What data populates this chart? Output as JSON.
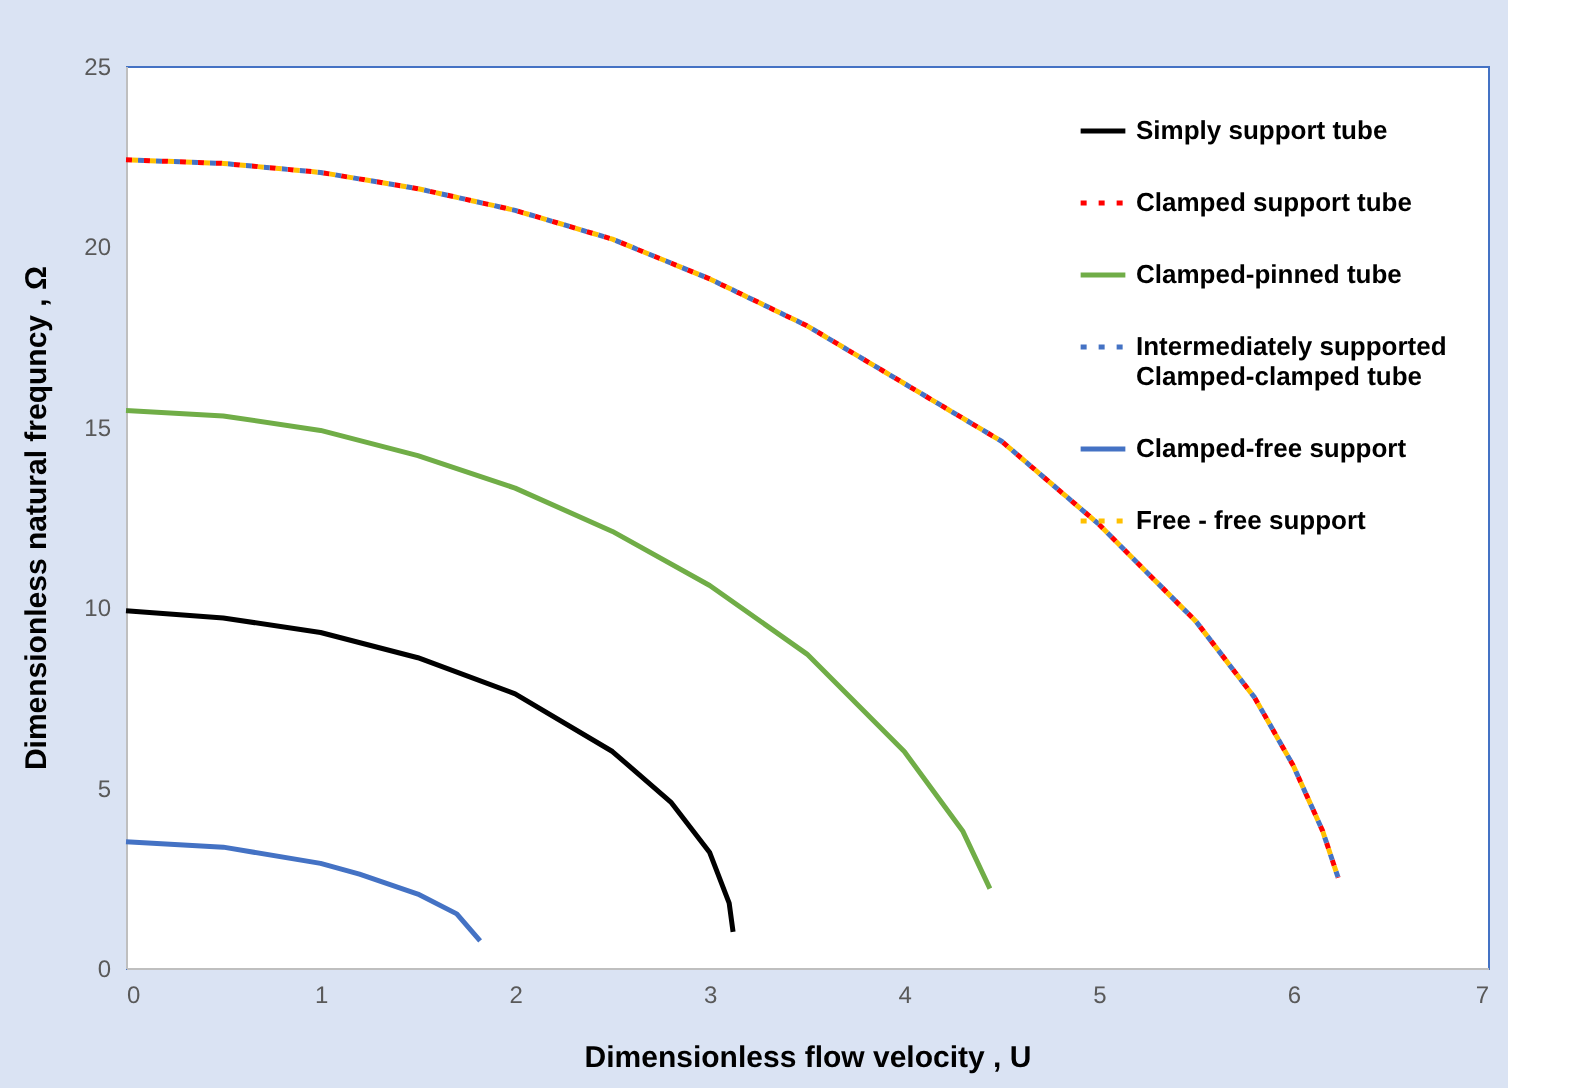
{
  "chart_data": {
    "type": "line",
    "xlabel": "Dimensionless flow velocity  , U",
    "ylabel": "Dimensionless natural frequncy , Ω",
    "xlim": [
      0,
      7
    ],
    "xticks": [
      0,
      1,
      2,
      3,
      4,
      5,
      6,
      7
    ],
    "ylim": [
      0,
      25
    ],
    "yticks": [
      0,
      5,
      10,
      15,
      20,
      25
    ],
    "grid": false,
    "legend": "top right",
    "marker": "none",
    "series": [
      {
        "name": "Simply support tube",
        "color": "#000000",
        "line_style": "solid",
        "x": [
          0,
          0.5,
          1,
          1.5,
          2,
          2.5,
          2.8,
          3.0,
          3.1,
          3.12
        ],
        "values": [
          9.9,
          9.7,
          9.3,
          8.6,
          7.6,
          6.0,
          4.6,
          3.2,
          1.8,
          1.0
        ]
      },
      {
        "name": "Clamped support tube",
        "color": "#ff0000",
        "line_style": "dashed",
        "x": [
          0,
          0.5,
          1,
          1.5,
          2,
          2.5,
          3,
          3.5,
          4,
          4.5,
          5,
          5.5,
          5.8,
          6.0,
          6.15,
          6.23
        ],
        "values": [
          22.4,
          22.3,
          22.05,
          21.6,
          21.0,
          20.2,
          19.1,
          17.8,
          16.2,
          14.6,
          12.3,
          9.6,
          7.5,
          5.6,
          3.8,
          2.5
        ]
      },
      {
        "name": "Clamped-pinned tube",
        "color": "#70ad47",
        "line_style": "solid",
        "x": [
          0,
          0.5,
          1,
          1.5,
          2,
          2.5,
          3,
          3.5,
          4,
          4.3,
          4.44
        ],
        "values": [
          15.45,
          15.3,
          14.9,
          14.2,
          13.3,
          12.1,
          10.6,
          8.7,
          6.0,
          3.8,
          2.2
        ]
      },
      {
        "name": "Intermediately supported\nClamped-clamped tube",
        "color": "#4472c4",
        "line_style": "dashed",
        "x": [
          0,
          0.5,
          1,
          1.5,
          2,
          2.5,
          3,
          3.5,
          4,
          4.5,
          5,
          5.5,
          5.8,
          6.0,
          6.15,
          6.23
        ],
        "values": [
          22.4,
          22.3,
          22.05,
          21.6,
          21.0,
          20.2,
          19.1,
          17.8,
          16.2,
          14.6,
          12.3,
          9.6,
          7.5,
          5.6,
          3.8,
          2.5
        ]
      },
      {
        "name": "Clamped-free support",
        "color": "#4472c4",
        "line_style": "solid",
        "x": [
          0,
          0.5,
          1,
          1.2,
          1.5,
          1.7,
          1.82
        ],
        "values": [
          3.5,
          3.35,
          2.9,
          2.6,
          2.05,
          1.5,
          0.75
        ]
      },
      {
        "name": "Free - free support",
        "color": "#ffc000",
        "line_style": "dashed",
        "x": [
          0,
          0.5,
          1,
          1.5,
          2,
          2.5,
          3,
          3.5,
          4,
          4.5,
          5,
          5.5,
          5.8,
          6.0,
          6.15,
          6.23
        ],
        "values": [
          22.4,
          22.3,
          22.05,
          21.6,
          21.0,
          20.2,
          19.1,
          17.8,
          16.2,
          14.6,
          12.3,
          9.6,
          7.5,
          5.6,
          3.8,
          2.5
        ]
      }
    ]
  }
}
